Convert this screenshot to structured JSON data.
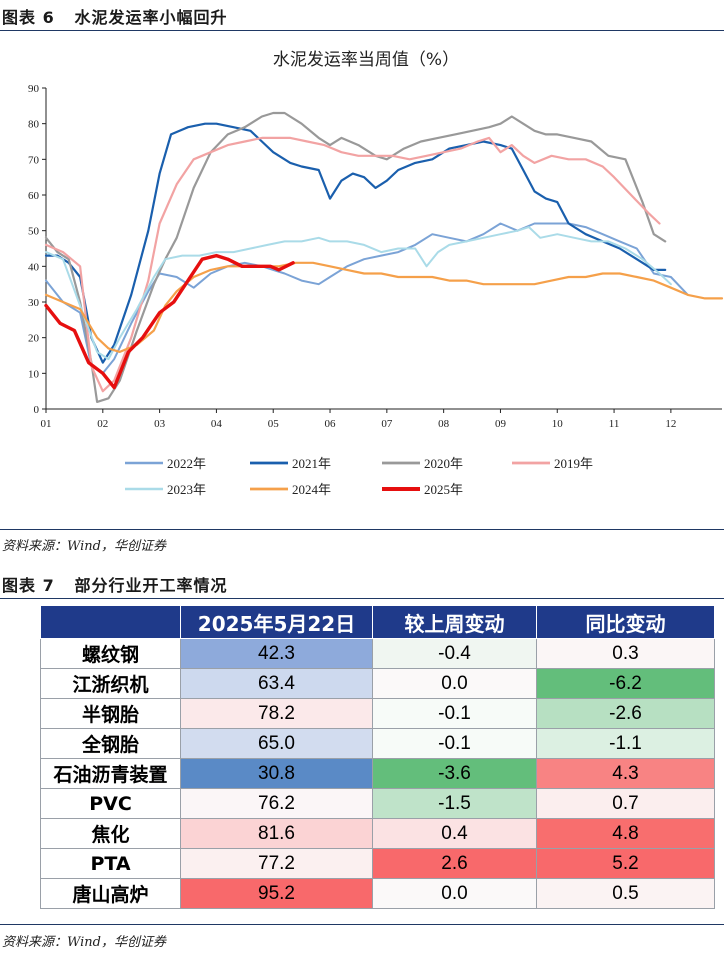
{
  "figure6": {
    "label": "图表 6",
    "title": "水泥发运率小幅回升",
    "source": "资料来源：Wind，华创证券"
  },
  "figure7": {
    "label": "图表 7",
    "title": "部分行业开工率情况",
    "source": "资料来源：Wind，华创证券"
  },
  "chart_data": {
    "type": "line",
    "title": "水泥发运率当周值（%）",
    "xlabel": "",
    "ylabel": "",
    "ylim": [
      0,
      90
    ],
    "xlim": [
      1,
      12.9
    ],
    "yticks": [
      0,
      10,
      20,
      30,
      40,
      50,
      60,
      70,
      80,
      90
    ],
    "xticks": [
      "01",
      "02",
      "03",
      "04",
      "05",
      "06",
      "07",
      "08",
      "09",
      "10",
      "11",
      "12"
    ],
    "grid": false,
    "legend_position": "bottom",
    "series": [
      {
        "name": "2022年",
        "color": "#7ba3d6",
        "width": 2,
        "x": [
          1.0,
          1.3,
          1.6,
          1.8,
          2.0,
          2.2,
          2.5,
          2.8,
          3.0,
          3.3,
          3.6,
          3.9,
          4.2,
          4.5,
          4.8,
          5.0,
          5.2,
          5.5,
          5.8,
          6.0,
          6.3,
          6.6,
          6.9,
          7.2,
          7.5,
          7.8,
          8.1,
          8.4,
          8.7,
          9.0,
          9.3,
          9.6,
          9.9,
          10.2,
          10.5,
          10.8,
          11.1,
          11.4,
          11.7,
          12.0,
          12.3
        ],
        "y": [
          36,
          30,
          27,
          12,
          10,
          14,
          24,
          33,
          38,
          37,
          34,
          38,
          40,
          41,
          40,
          39,
          38,
          36,
          35,
          37,
          40,
          42,
          43,
          44,
          46,
          49,
          48,
          47,
          49,
          52,
          50,
          52,
          52,
          52,
          51,
          49,
          47,
          45,
          38,
          37,
          32
        ]
      },
      {
        "name": "2021年",
        "color": "#1a5fad",
        "width": 2.2,
        "x": [
          1.0,
          1.2,
          1.4,
          1.6,
          1.8,
          2.0,
          2.2,
          2.5,
          2.8,
          3.0,
          3.2,
          3.5,
          3.8,
          4.0,
          4.3,
          4.6,
          4.8,
          5.0,
          5.3,
          5.5,
          5.8,
          6.0,
          6.2,
          6.4,
          6.6,
          6.8,
          7.0,
          7.2,
          7.5,
          7.8,
          8.1,
          8.4,
          8.7,
          9.0,
          9.2,
          9.4,
          9.6,
          9.8,
          10.0,
          10.2,
          10.5,
          10.8,
          11.1,
          11.4,
          11.7,
          11.9
        ],
        "y": [
          43,
          43,
          41,
          37,
          20,
          13,
          18,
          32,
          50,
          66,
          77,
          79,
          80,
          80,
          79,
          78,
          75,
          72,
          69,
          68,
          67,
          59,
          64,
          66,
          65,
          62,
          64,
          67,
          69,
          70,
          73,
          74,
          75,
          74,
          73,
          67,
          61,
          59,
          58,
          52,
          49,
          47,
          45,
          42,
          39,
          39
        ]
      },
      {
        "name": "2020年",
        "color": "#999999",
        "width": 2.2,
        "x": [
          1.0,
          1.2,
          1.4,
          1.6,
          1.8,
          1.9,
          2.1,
          2.3,
          2.6,
          2.9,
          3.1,
          3.3,
          3.6,
          3.9,
          4.2,
          4.5,
          4.8,
          5.0,
          5.2,
          5.5,
          5.8,
          6.0,
          6.2,
          6.5,
          6.8,
          7.0,
          7.3,
          7.6,
          7.9,
          8.2,
          8.5,
          8.8,
          9.0,
          9.2,
          9.4,
          9.6,
          9.8,
          10.0,
          10.3,
          10.6,
          10.9,
          11.2,
          11.5,
          11.7,
          11.9
        ],
        "y": [
          48,
          44,
          42,
          30,
          13,
          2,
          3,
          8,
          22,
          35,
          42,
          48,
          62,
          72,
          77,
          79,
          82,
          83,
          83,
          80,
          76,
          74,
          76,
          74,
          71,
          70,
          73,
          75,
          76,
          77,
          78,
          79,
          80,
          82,
          80,
          78,
          77,
          77,
          76,
          75,
          71,
          70,
          58,
          49,
          47
        ]
      },
      {
        "name": "2019年",
        "color": "#f2a3a3",
        "width": 2.2,
        "x": [
          1.0,
          1.3,
          1.6,
          1.8,
          2.0,
          2.2,
          2.5,
          2.8,
          3.0,
          3.3,
          3.6,
          3.9,
          4.2,
          4.5,
          4.8,
          5.0,
          5.3,
          5.6,
          5.9,
          6.2,
          6.5,
          6.8,
          7.1,
          7.4,
          7.7,
          8.0,
          8.3,
          8.6,
          8.8,
          9.0,
          9.2,
          9.4,
          9.6,
          9.9,
          10.2,
          10.5,
          10.8,
          11.0,
          11.3,
          11.6,
          11.8
        ],
        "y": [
          46,
          44,
          40,
          12,
          5,
          8,
          20,
          36,
          52,
          63,
          70,
          72,
          74,
          75,
          76,
          76,
          76,
          75,
          74,
          72,
          71,
          71,
          71,
          70,
          71,
          72,
          73,
          75,
          76,
          72,
          74,
          71,
          69,
          71,
          70,
          70,
          68,
          65,
          60,
          55,
          52
        ]
      },
      {
        "name": "2023年",
        "color": "#aadbe8",
        "width": 2,
        "x": [
          1.0,
          1.3,
          1.6,
          1.9,
          2.1,
          2.3,
          2.6,
          2.9,
          3.1,
          3.4,
          3.7,
          4.0,
          4.3,
          4.6,
          4.9,
          5.2,
          5.5,
          5.8,
          6.0,
          6.3,
          6.6,
          6.9,
          7.2,
          7.5,
          7.7,
          7.9,
          8.1,
          8.4,
          8.7,
          9.0,
          9.3,
          9.5,
          9.7,
          10.0,
          10.3,
          10.6,
          10.9,
          11.2,
          11.5,
          11.8,
          12.0
        ],
        "y": [
          44,
          42,
          29,
          16,
          14,
          20,
          28,
          37,
          42,
          43,
          43,
          44,
          44,
          45,
          46,
          47,
          47,
          48,
          47,
          47,
          46,
          44,
          45,
          45,
          40,
          44,
          46,
          47,
          48,
          49,
          50,
          51,
          48,
          49,
          48,
          47,
          47,
          45,
          42,
          38,
          35
        ]
      },
      {
        "name": "2024年",
        "color": "#f5a04a",
        "width": 2.2,
        "x": [
          1.0,
          1.3,
          1.6,
          1.9,
          2.1,
          2.3,
          2.6,
          2.9,
          3.1,
          3.3,
          3.6,
          3.9,
          4.2,
          4.5,
          4.8,
          5.1,
          5.4,
          5.7,
          6.0,
          6.3,
          6.6,
          6.9,
          7.2,
          7.5,
          7.8,
          8.1,
          8.4,
          8.7,
          9.0,
          9.3,
          9.6,
          9.9,
          10.2,
          10.5,
          10.8,
          11.1,
          11.4,
          11.7,
          12.0,
          12.3,
          12.6,
          12.9
        ],
        "y": [
          32,
          30,
          28,
          20,
          17,
          16,
          18,
          22,
          29,
          33,
          37,
          39,
          40,
          40,
          40,
          40,
          41,
          41,
          40,
          39,
          38,
          38,
          37,
          37,
          37,
          36,
          36,
          35,
          35,
          35,
          35,
          36,
          37,
          37,
          38,
          38,
          37,
          36,
          34,
          32,
          31,
          31
        ]
      },
      {
        "name": "2025年",
        "color": "#e60f0f",
        "width": 3.4,
        "x": [
          1.0,
          1.25,
          1.5,
          1.75,
          2.0,
          2.2,
          2.45,
          2.7,
          3.0,
          3.25,
          3.5,
          3.75,
          4.0,
          4.2,
          4.45,
          4.7,
          4.95,
          5.1,
          5.35
        ],
        "y": [
          29,
          24,
          22,
          13,
          10,
          6,
          16,
          20,
          27,
          30,
          36,
          42,
          43,
          42,
          40,
          40,
          40,
          39,
          41
        ]
      }
    ]
  },
  "table": {
    "headers": [
      "",
      "2025年5月22日",
      "较上周变动",
      "同比变动"
    ],
    "rows": [
      {
        "name": "螺纹钢",
        "value": "42.3",
        "wow": "-0.4",
        "yoy": "0.3",
        "c_value": "#8eaadb",
        "c_wow": "#f0f6f1",
        "c_yoy": "#fbf6f6"
      },
      {
        "name": "江浙织机",
        "value": "63.4",
        "wow": "0.0",
        "yoy": "-6.2",
        "c_value": "#cdd9ee",
        "c_wow": "#fbf9f9",
        "c_yoy": "#63be7b"
      },
      {
        "name": "半钢胎",
        "value": "78.2",
        "wow": "-0.1",
        "yoy": "-2.6",
        "c_value": "#fbe9ea",
        "c_wow": "#f7fbf8",
        "c_yoy": "#b7e0c2"
      },
      {
        "name": "全钢胎",
        "value": "65.0",
        "wow": "-0.1",
        "yoy": "-1.1",
        "c_value": "#d2dcef",
        "c_wow": "#f7fbf8",
        "c_yoy": "#dcf0e2"
      },
      {
        "name": "石油沥青装置",
        "value": "30.8",
        "wow": "-3.6",
        "yoy": "4.3",
        "c_value": "#5a8ac6",
        "c_wow": "#63be7b",
        "c_yoy": "#f88383"
      },
      {
        "name": "PVC",
        "value": "76.2",
        "wow": "-1.5",
        "yoy": "0.7",
        "c_value": "#fbf6f7",
        "c_wow": "#bfe3c9",
        "c_yoy": "#fbeeee"
      },
      {
        "name": "焦化",
        "value": "81.6",
        "wow": "0.4",
        "yoy": "4.8",
        "c_value": "#fbd3d4",
        "c_wow": "#fbe2e3",
        "c_yoy": "#f86e6e"
      },
      {
        "name": "PTA",
        "value": "77.2",
        "wow": "2.6",
        "yoy": "5.2",
        "c_value": "#fbf0f0",
        "c_wow": "#f8696b",
        "c_yoy": "#f8696b"
      },
      {
        "name": "唐山高炉",
        "value": "95.2",
        "wow": "0.0",
        "yoy": "0.5",
        "c_value": "#f8696b",
        "c_wow": "#fbf9f9",
        "c_yoy": "#fbf3f3"
      }
    ]
  }
}
